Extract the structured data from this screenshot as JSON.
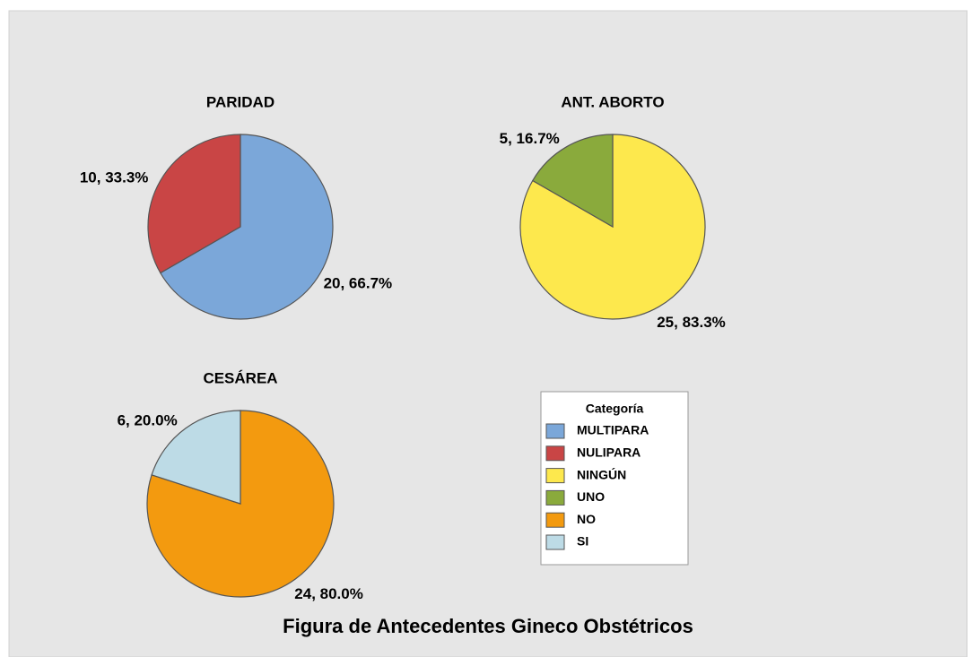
{
  "title": "Figura de Antecedentes Gineco Obstétricos",
  "legend_title": "Categoría",
  "chart_data": [
    {
      "type": "pie",
      "title": "PARIDAD",
      "categories": [
        "MULTIPARA",
        "NULIPARA"
      ],
      "values": [
        20,
        10
      ],
      "value_labels": [
        "20, 66.7%",
        "10, 33.3%"
      ],
      "colors": [
        "#7ba7d9",
        "#c94545"
      ]
    },
    {
      "type": "pie",
      "title": "ANT. ABORTO",
      "categories": [
        "NINGÚN",
        "UNO"
      ],
      "values": [
        25,
        5
      ],
      "value_labels": [
        "25, 83.3%",
        "5, 16.7%"
      ],
      "colors": [
        "#fde84d",
        "#8aaa3c"
      ]
    },
    {
      "type": "pie",
      "title": "CESÁREA",
      "categories": [
        "NO",
        "SI"
      ],
      "values": [
        24,
        6
      ],
      "value_labels": [
        "24, 80.0%",
        "6, 20.0%"
      ],
      "colors": [
        "#f39a0f",
        "#bddbe6"
      ]
    }
  ]
}
